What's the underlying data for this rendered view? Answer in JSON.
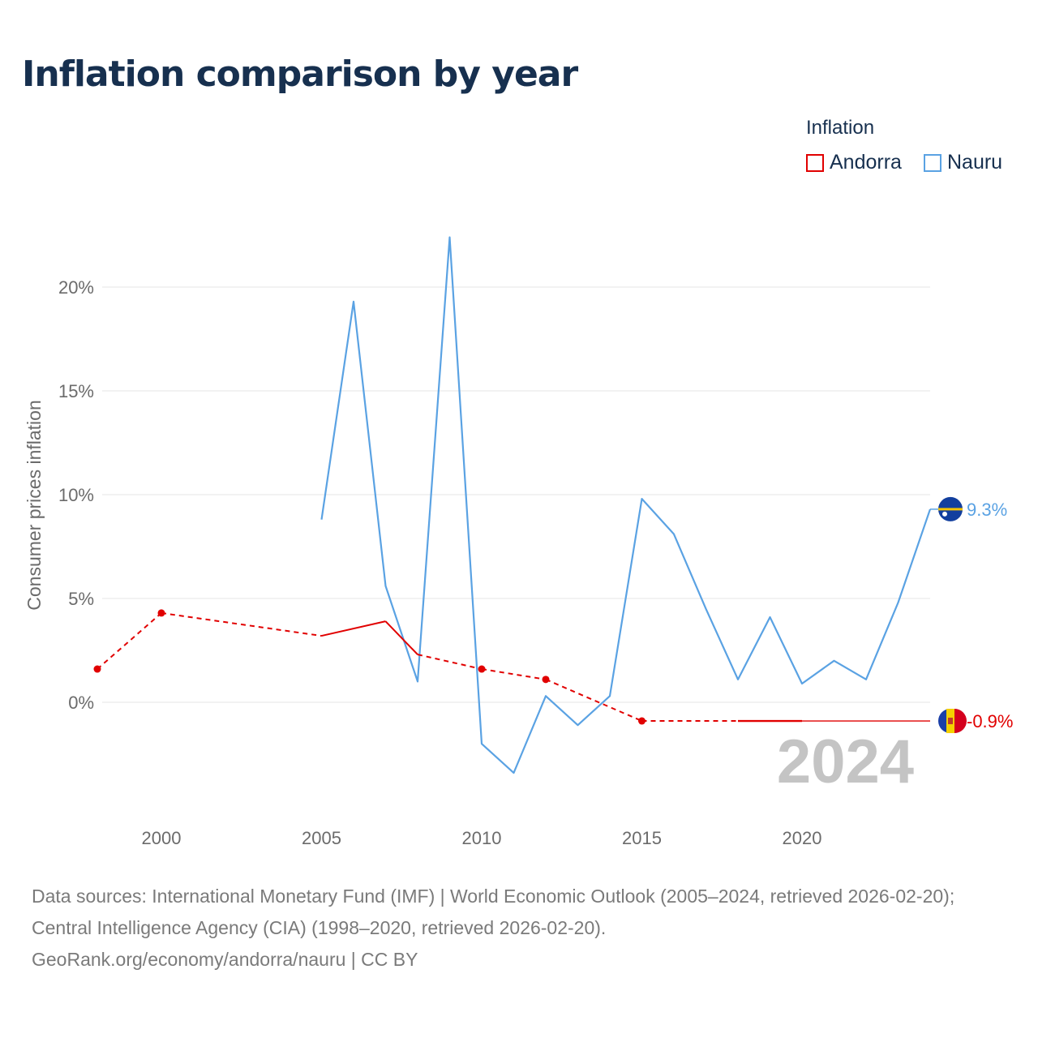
{
  "title": "Inflation comparison by year",
  "legend": {
    "title": "Inflation",
    "items": [
      {
        "label": "Andorra",
        "color": "#e10000"
      },
      {
        "label": "Nauru",
        "color": "#5aa2e3"
      }
    ]
  },
  "footer": {
    "sources": "Data sources: International Monetary Fund (IMF) | World Economic Outlook (2005–2024, retrieved 2026-02-20); Central Intelligence Agency (CIA) (1998–2020, retrieved 2026-02-20).",
    "credit": "GeoRank.org/economy/andorra/nauru | CC BY"
  },
  "chart_data": {
    "type": "line",
    "ylabel": "Consumer prices inflation",
    "xlabel": "",
    "xlim": [
      1998,
      2024
    ],
    "ylim": [
      -5,
      25
    ],
    "xticks": [
      2000,
      2005,
      2010,
      2015,
      2020
    ],
    "xtick_labels": [
      "2000",
      "2005",
      "2010",
      "2015",
      "2020"
    ],
    "yticks": [
      0,
      5,
      10,
      15,
      20
    ],
    "ytick_labels": [
      "0%",
      "5%",
      "10%",
      "15%",
      "20%"
    ],
    "current_year_label": "2024",
    "series": [
      {
        "name": "Andorra",
        "color": "#e10000",
        "end_label": "-0.9%",
        "points": [
          {
            "x": 1998,
            "y": 1.6,
            "marker": true
          },
          {
            "x": 2000,
            "y": 4.3,
            "marker": true
          },
          {
            "x": 2005,
            "y": 3.2
          },
          {
            "x": 2007,
            "y": 3.9
          },
          {
            "x": 2008,
            "y": 2.3
          },
          {
            "x": 2010,
            "y": 1.6,
            "marker": true
          },
          {
            "x": 2012,
            "y": 1.1,
            "marker": true
          },
          {
            "x": 2015,
            "y": -0.9,
            "marker": true
          },
          {
            "x": 2018,
            "y": -0.9
          },
          {
            "x": 2020,
            "y": -0.9
          },
          {
            "x": 2024,
            "y": -0.9
          }
        ]
      },
      {
        "name": "Nauru",
        "color": "#5aa2e3",
        "end_label": "9.3%",
        "points": [
          {
            "x": 2005,
            "y": 8.8
          },
          {
            "x": 2006,
            "y": 19.3
          },
          {
            "x": 2007,
            "y": 5.6
          },
          {
            "x": 2008,
            "y": 1.0
          },
          {
            "x": 2009,
            "y": 22.4
          },
          {
            "x": 2010,
            "y": -2.0
          },
          {
            "x": 2011,
            "y": -3.4
          },
          {
            "x": 2012,
            "y": 0.3
          },
          {
            "x": 2013,
            "y": -1.1
          },
          {
            "x": 2014,
            "y": 0.3
          },
          {
            "x": 2015,
            "y": 9.8
          },
          {
            "x": 2016,
            "y": 8.1
          },
          {
            "x": 2017,
            "y": 4.5
          },
          {
            "x": 2018,
            "y": 1.1
          },
          {
            "x": 2019,
            "y": 4.1
          },
          {
            "x": 2020,
            "y": 0.9
          },
          {
            "x": 2021,
            "y": 2.0
          },
          {
            "x": 2022,
            "y": 1.1
          },
          {
            "x": 2023,
            "y": 4.8
          },
          {
            "x": 2024,
            "y": 9.3
          }
        ]
      }
    ]
  }
}
